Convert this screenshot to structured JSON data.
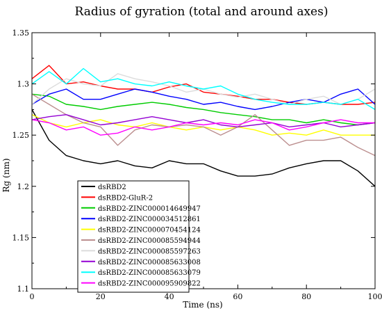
{
  "chart_data": {
    "type": "line",
    "title": "Radius of gyration (total and around axes)",
    "xlabel": "Time (ns)",
    "ylabel": "Rg (nm)",
    "xlim": [
      0,
      100
    ],
    "ylim": [
      1.1,
      1.35
    ],
    "xticks": [
      "0",
      "20",
      "40",
      "60",
      "80",
      "100"
    ],
    "yticks": [
      "1.1",
      "1.15",
      "1.2",
      "1.25",
      "1.3",
      "1.35"
    ],
    "grid": false,
    "legend_position": "lower-left",
    "series": [
      {
        "name": "dsRBD2",
        "color": "#000000",
        "x": [
          0,
          5,
          10,
          15,
          20,
          25,
          30,
          35,
          40,
          45,
          50,
          55,
          60,
          65,
          70,
          75,
          80,
          85,
          90,
          95,
          100
        ],
        "y": [
          1.275,
          1.245,
          1.23,
          1.225,
          1.222,
          1.225,
          1.22,
          1.218,
          1.225,
          1.222,
          1.222,
          1.215,
          1.21,
          1.21,
          1.212,
          1.218,
          1.222,
          1.225,
          1.225,
          1.215,
          1.2
        ]
      },
      {
        "name": "dsRBD2-GluR-2",
        "color": "#ff0000",
        "x": [
          0,
          5,
          10,
          15,
          20,
          25,
          30,
          35,
          40,
          45,
          50,
          55,
          60,
          65,
          70,
          75,
          80,
          85,
          90,
          95,
          100
        ],
        "y": [
          1.305,
          1.318,
          1.3,
          1.302,
          1.298,
          1.295,
          1.295,
          1.292,
          1.297,
          1.3,
          1.292,
          1.29,
          1.288,
          1.285,
          1.285,
          1.282,
          1.28,
          1.282,
          1.28,
          1.28,
          1.282
        ]
      },
      {
        "name": "dsRBD2-ZINC000014649947",
        "color": "#00cc00",
        "x": [
          0,
          5,
          10,
          15,
          20,
          25,
          30,
          35,
          40,
          45,
          50,
          55,
          60,
          65,
          70,
          75,
          80,
          85,
          90,
          95,
          100
        ],
        "y": [
          1.29,
          1.288,
          1.28,
          1.278,
          1.275,
          1.278,
          1.28,
          1.282,
          1.28,
          1.277,
          1.275,
          1.272,
          1.27,
          1.268,
          1.265,
          1.265,
          1.262,
          1.265,
          1.262,
          1.26,
          1.262
        ]
      },
      {
        "name": "dsRBD2-ZINC000034512861",
        "color": "#0000ff",
        "x": [
          0,
          5,
          10,
          15,
          20,
          25,
          30,
          35,
          40,
          45,
          50,
          55,
          60,
          65,
          70,
          75,
          80,
          85,
          90,
          95,
          100
        ],
        "y": [
          1.28,
          1.29,
          1.295,
          1.285,
          1.285,
          1.29,
          1.295,
          1.292,
          1.288,
          1.285,
          1.28,
          1.282,
          1.278,
          1.275,
          1.278,
          1.282,
          1.285,
          1.282,
          1.29,
          1.295,
          1.28
        ]
      },
      {
        "name": "dsRBD2-ZINC000070454124",
        "color": "#ffff00",
        "x": [
          0,
          5,
          10,
          15,
          20,
          25,
          30,
          35,
          40,
          45,
          50,
          55,
          60,
          65,
          70,
          75,
          80,
          85,
          90,
          95,
          100
        ],
        "y": [
          1.27,
          1.262,
          1.258,
          1.262,
          1.265,
          1.26,
          1.258,
          1.262,
          1.258,
          1.255,
          1.258,
          1.255,
          1.258,
          1.255,
          1.25,
          1.252,
          1.25,
          1.255,
          1.25,
          1.25,
          1.25
        ]
      },
      {
        "name": "dsRBD2-ZINC000085594944",
        "color": "#bc8f8f",
        "x": [
          0,
          5,
          10,
          15,
          20,
          25,
          30,
          35,
          40,
          45,
          50,
          55,
          60,
          65,
          70,
          75,
          80,
          85,
          90,
          95,
          100
        ],
        "y": [
          1.29,
          1.28,
          1.27,
          1.262,
          1.258,
          1.24,
          1.255,
          1.26,
          1.258,
          1.26,
          1.258,
          1.25,
          1.258,
          1.27,
          1.255,
          1.24,
          1.245,
          1.245,
          1.248,
          1.238,
          1.23
        ]
      },
      {
        "name": "dsRBD2-ZINC000085597263",
        "color": "#dcdcdc",
        "x": [
          0,
          5,
          10,
          15,
          20,
          25,
          30,
          35,
          40,
          45,
          50,
          55,
          60,
          65,
          70,
          75,
          80,
          85,
          90,
          95,
          100
        ],
        "y": [
          1.28,
          1.295,
          1.305,
          1.3,
          1.298,
          1.31,
          1.305,
          1.302,
          1.298,
          1.292,
          1.295,
          1.29,
          1.287,
          1.29,
          1.285,
          1.28,
          1.285,
          1.288,
          1.28,
          1.285,
          1.295
        ]
      },
      {
        "name": "dsRBD2-ZINC000085633008",
        "color": "#9400d3",
        "x": [
          0,
          5,
          10,
          15,
          20,
          25,
          30,
          35,
          40,
          45,
          50,
          55,
          60,
          65,
          70,
          75,
          80,
          85,
          90,
          95,
          100
        ],
        "y": [
          1.265,
          1.268,
          1.27,
          1.265,
          1.26,
          1.262,
          1.265,
          1.268,
          1.265,
          1.262,
          1.265,
          1.26,
          1.258,
          1.26,
          1.262,
          1.258,
          1.26,
          1.262,
          1.258,
          1.26,
          1.262
        ]
      },
      {
        "name": "dsRBD2-ZINC000085633079",
        "color": "#00ffff",
        "x": [
          0,
          5,
          10,
          15,
          20,
          25,
          30,
          35,
          40,
          45,
          50,
          55,
          60,
          65,
          70,
          75,
          80,
          85,
          90,
          95,
          100
        ],
        "y": [
          1.3,
          1.312,
          1.3,
          1.315,
          1.302,
          1.305,
          1.3,
          1.298,
          1.302,
          1.298,
          1.295,
          1.298,
          1.29,
          1.285,
          1.282,
          1.28,
          1.28,
          1.282,
          1.28,
          1.285,
          1.275
        ]
      },
      {
        "name": "dsRBD2-ZINC000095909822",
        "color": "#ff00ff",
        "x": [
          0,
          5,
          10,
          15,
          20,
          25,
          30,
          35,
          40,
          45,
          50,
          55,
          60,
          65,
          70,
          75,
          80,
          85,
          90,
          95,
          100
        ],
        "y": [
          1.265,
          1.262,
          1.255,
          1.258,
          1.25,
          1.252,
          1.258,
          1.255,
          1.258,
          1.262,
          1.26,
          1.262,
          1.26,
          1.265,
          1.262,
          1.255,
          1.258,
          1.262,
          1.265,
          1.262,
          1.262
        ]
      }
    ]
  }
}
